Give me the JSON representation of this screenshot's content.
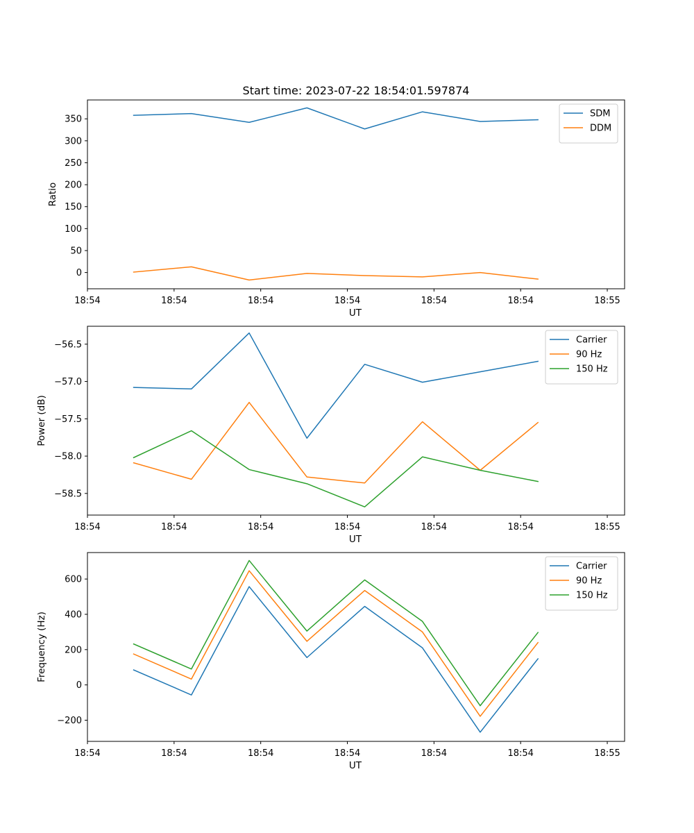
{
  "figure_title": "Start time: 2023-07-22 18:54:01.597874",
  "colors": {
    "c0": "#1f77b4",
    "c1": "#ff7f0e",
    "c2": "#2ca02c"
  },
  "chart_data": [
    {
      "type": "line",
      "title": "Start time: 2023-07-22 18:54:01.597874",
      "xlabel": "UT",
      "ylabel": "Ratio",
      "x": [
        1,
        2,
        3,
        4,
        5,
        6,
        7,
        8
      ],
      "xlim": [
        0.2,
        9.5
      ],
      "x_ticks": [
        0.2,
        1.7,
        3.2,
        4.7,
        6.2,
        7.7,
        9.2
      ],
      "x_tick_labels": [
        "18:54",
        "18:54",
        "18:54",
        "18:54",
        "18:54",
        "18:54",
        "18:55"
      ],
      "ylim": [
        -37,
        393
      ],
      "y_ticks": [
        0,
        50,
        100,
        150,
        200,
        250,
        300,
        350
      ],
      "y_tick_labels": [
        "0",
        "50",
        "100",
        "150",
        "200",
        "250",
        "300",
        "350"
      ],
      "legend": "top-right",
      "series": [
        {
          "name": "SDM",
          "color": "#1f77b4",
          "values": [
            358,
            362,
            342,
            375,
            327,
            366,
            344,
            348
          ]
        },
        {
          "name": "DDM",
          "color": "#ff7f0e",
          "values": [
            1,
            13,
            -17,
            -2,
            -7,
            -10,
            0,
            -15
          ]
        }
      ]
    },
    {
      "type": "line",
      "xlabel": "UT",
      "ylabel": "Power (dB)",
      "x": [
        1,
        2,
        3,
        4,
        5,
        6,
        7,
        8
      ],
      "xlim": [
        0.2,
        9.5
      ],
      "x_ticks": [
        0.2,
        1.7,
        3.2,
        4.7,
        6.2,
        7.7,
        9.2
      ],
      "x_tick_labels": [
        "18:54",
        "18:54",
        "18:54",
        "18:54",
        "18:54",
        "18:54",
        "18:55"
      ],
      "ylim": [
        -58.79,
        -56.26
      ],
      "y_ticks": [
        -58.5,
        -58.0,
        -57.5,
        -57.0,
        -56.5
      ],
      "y_tick_labels": [
        "−58.5",
        "−58.0",
        "−57.5",
        "−57.0",
        "−56.5"
      ],
      "legend": "top-right",
      "series": [
        {
          "name": "Carrier",
          "color": "#1f77b4",
          "values": [
            -57.08,
            -57.1,
            -56.35,
            -57.76,
            -56.77,
            -57.01,
            -56.87,
            -56.73
          ]
        },
        {
          "name": "90 Hz",
          "color": "#ff7f0e",
          "values": [
            -58.09,
            -58.31,
            -57.28,
            -58.28,
            -58.36,
            -57.54,
            -58.19,
            -57.55
          ]
        },
        {
          "name": "150 Hz",
          "color": "#2ca02c",
          "values": [
            -58.02,
            -57.66,
            -58.18,
            -58.37,
            -58.68,
            -58.01,
            -58.19,
            -58.34
          ]
        }
      ]
    },
    {
      "type": "line",
      "xlabel": "UT",
      "ylabel": "Frequency (Hz)",
      "x": [
        1,
        2,
        3,
        4,
        5,
        6,
        7,
        8
      ],
      "xlim": [
        0.2,
        9.5
      ],
      "x_ticks": [
        0.2,
        1.7,
        3.2,
        4.7,
        6.2,
        7.7,
        9.2
      ],
      "x_tick_labels": [
        "18:54",
        "18:54",
        "18:54",
        "18:54",
        "18:54",
        "18:54",
        "18:55"
      ],
      "ylim": [
        -320,
        750
      ],
      "y_ticks": [
        -200,
        0,
        200,
        400,
        600
      ],
      "y_tick_labels": [
        "−200",
        "0",
        "200",
        "400",
        "600"
      ],
      "legend": "top-right",
      "series": [
        {
          "name": "Carrier",
          "color": "#1f77b4",
          "values": [
            85,
            -57,
            557,
            155,
            445,
            210,
            -268,
            148
          ]
        },
        {
          "name": "90 Hz",
          "color": "#ff7f0e",
          "values": [
            175,
            33,
            647,
            247,
            535,
            300,
            -178,
            240
          ]
        },
        {
          "name": "150 Hz",
          "color": "#2ca02c",
          "values": [
            232,
            90,
            705,
            305,
            595,
            360,
            -118,
            297
          ]
        }
      ]
    }
  ]
}
